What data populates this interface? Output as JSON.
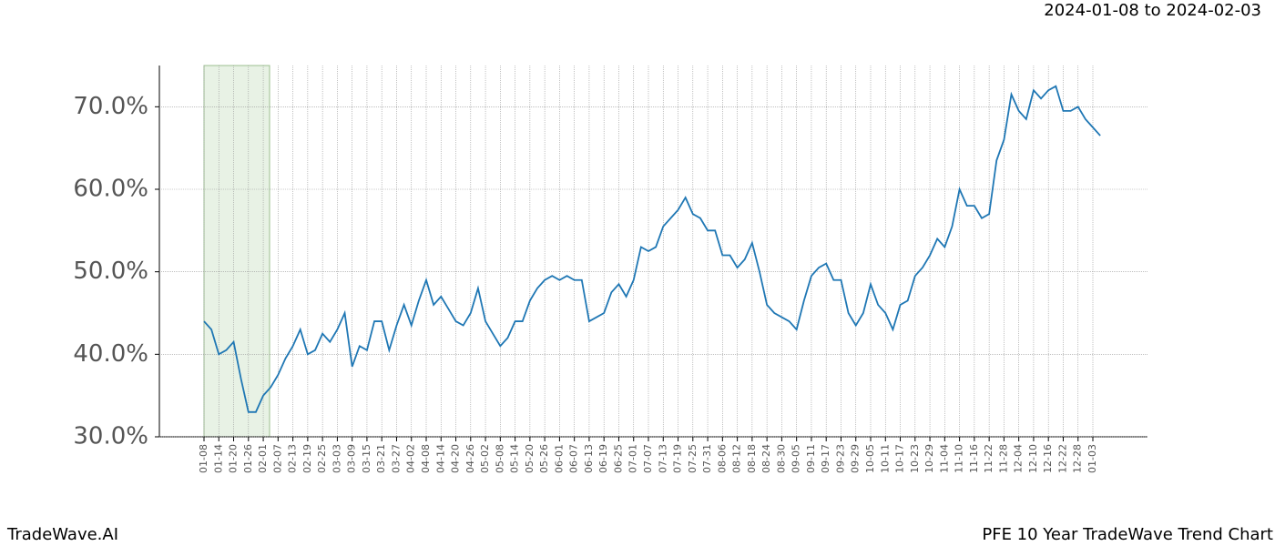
{
  "chart_data": {
    "type": "line",
    "subtitle": "2024-01-08 to 2024-02-03",
    "footer_left": "TradeWave.AI",
    "footer_right": "PFE 10 Year TradeWave Trend Chart",
    "color": "#1f77b4",
    "grid": true,
    "categories": [
      "01-08",
      null,
      "01-14",
      null,
      "01-20",
      null,
      "01-26",
      null,
      "02-01",
      null,
      "02-07",
      null,
      "02-13",
      null,
      "02-19",
      null,
      "02-25",
      null,
      "03-03",
      null,
      "03-09",
      null,
      "03-15",
      null,
      "03-21",
      null,
      "03-27",
      null,
      "04-02",
      null,
      "04-08",
      null,
      "04-14",
      null,
      "04-20",
      null,
      "04-26",
      null,
      "05-02",
      null,
      "05-08",
      null,
      "05-14",
      null,
      "05-20",
      null,
      "05-26",
      null,
      "06-01",
      null,
      "06-07",
      null,
      "06-13",
      null,
      "06-19",
      null,
      "06-25",
      null,
      "07-01",
      null,
      "07-07",
      null,
      "07-13",
      null,
      "07-19",
      null,
      "07-25",
      null,
      "07-31",
      null,
      "08-06",
      null,
      "08-12",
      null,
      "08-18",
      null,
      "08-24",
      null,
      "08-30",
      null,
      "09-05",
      null,
      "09-11",
      null,
      "09-17",
      null,
      "09-23",
      null,
      "09-29",
      null,
      "10-05",
      null,
      "10-11",
      null,
      "10-17",
      null,
      "10-23",
      null,
      "10-29",
      null,
      "11-04",
      null,
      "11-10",
      null,
      "11-16",
      null,
      "11-22",
      null,
      "11-28",
      null,
      "12-04",
      null,
      "12-10",
      null,
      "12-16",
      null,
      "12-22",
      null,
      "12-28",
      null,
      "01-03",
      null
    ],
    "values": [
      44,
      43,
      40,
      40.5,
      41.5,
      37,
      33,
      33,
      35,
      36,
      37.5,
      39.5,
      41,
      43,
      40,
      40.5,
      42.5,
      41.5,
      43,
      45,
      38.5,
      41,
      40.5,
      44,
      44,
      40.5,
      43.5,
      46,
      43.5,
      46.5,
      49,
      46,
      47,
      45.5,
      44,
      43.5,
      45,
      48,
      44,
      42.5,
      41,
      42,
      44,
      44,
      46.5,
      48,
      49,
      49.5,
      49,
      49.5,
      49,
      49,
      44,
      44.5,
      45,
      47.5,
      48.5,
      47,
      49,
      53,
      52.5,
      53,
      55.5,
      56.5,
      57.5,
      59,
      57,
      56.5,
      55,
      55,
      52,
      52,
      50.5,
      51.5,
      53.5,
      50,
      46,
      45,
      44.5,
      44,
      43,
      46.5,
      49.5,
      50.5,
      51,
      49,
      49,
      45,
      43.5,
      45,
      48.5,
      46,
      45,
      43,
      46,
      46.5,
      49.5,
      50.5,
      52,
      54,
      53,
      55.5,
      60,
      58,
      58,
      56.5,
      57,
      63.5,
      66,
      71.5,
      69.5,
      68.5,
      72,
      71,
      72,
      72.5,
      69.5,
      69.5,
      70,
      68.5,
      67.5,
      66.5
    ],
    "ylim": [
      30,
      75
    ],
    "yticks": [
      {
        "value": 30,
        "label": "30.0%"
      },
      {
        "value": 40,
        "label": "40.0%"
      },
      {
        "value": 50,
        "label": "50.0%"
      },
      {
        "value": 60,
        "label": "60.0%"
      },
      {
        "value": 70,
        "label": "70.0%"
      }
    ]
  }
}
